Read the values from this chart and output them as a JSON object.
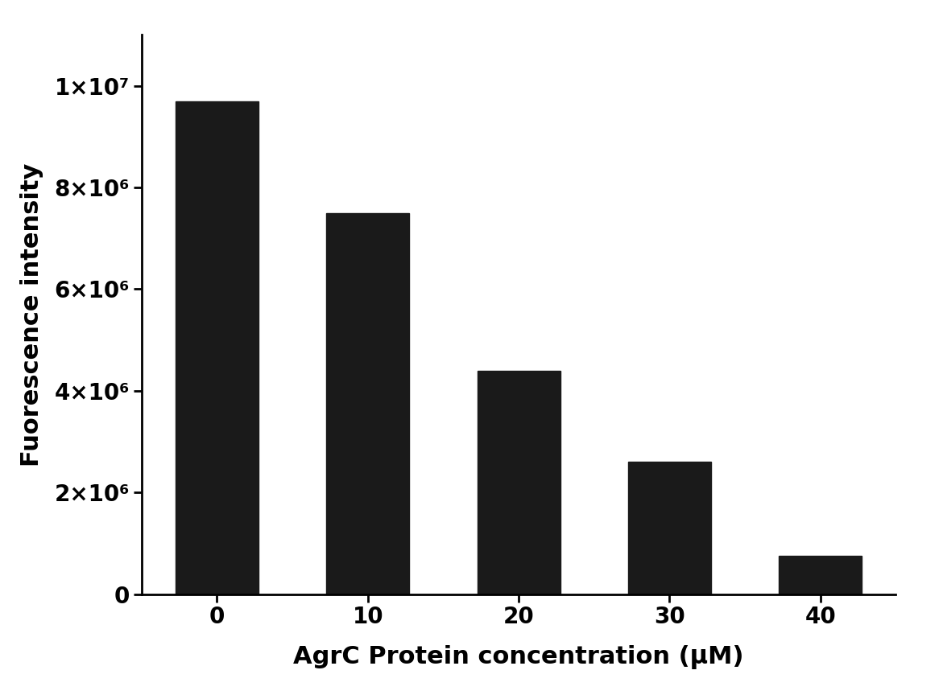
{
  "categories": [
    0,
    10,
    20,
    30,
    40
  ],
  "values": [
    9700000,
    7500000,
    4400000,
    2600000,
    750000
  ],
  "bar_color": "#1a1a1a",
  "xlabel": "AgrC Protein concentration (μM)",
  "ylabel": "Fuorescence intensity",
  "ylim": [
    0,
    11000000
  ],
  "yticks": [
    0,
    2000000,
    4000000,
    6000000,
    8000000,
    10000000
  ],
  "ytick_labels": [
    "0",
    "2×10⁶",
    "4×10⁶",
    "6×10⁶",
    "8×10⁶",
    "1×10⁷"
  ],
  "bar_width": 0.55,
  "xlabel_fontsize": 22,
  "ylabel_fontsize": 22,
  "tick_fontsize": 20,
  "background_color": "#ffffff",
  "axes_linewidth": 2.0
}
